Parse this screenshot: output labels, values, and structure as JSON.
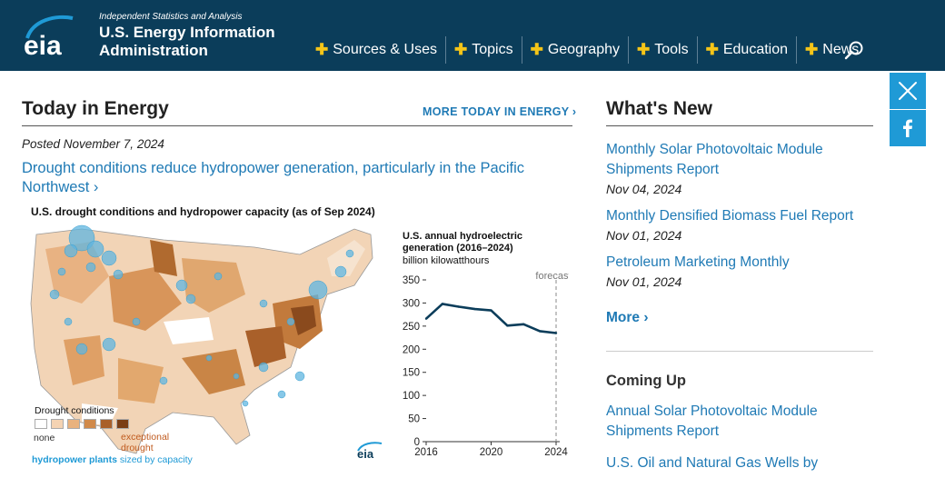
{
  "header": {
    "logo_text": "eia",
    "tagline": "Independent Statistics and Analysis",
    "org_name": "U.S. Energy Information Administration",
    "nav": [
      {
        "label": "Sources & Uses"
      },
      {
        "label": "Topics"
      },
      {
        "label": "Geography"
      },
      {
        "label": "Tools"
      },
      {
        "label": "Education"
      },
      {
        "label": "News"
      }
    ],
    "search_icon": "search-icon"
  },
  "social": {
    "twitter_icon": "x-twitter-icon",
    "facebook_icon": "facebook-icon"
  },
  "today": {
    "title": "Today in Energy",
    "more_link": "MORE TODAY IN ENERGY ›",
    "posted": "Posted November 7, 2024",
    "headline": "Drought conditions reduce hydropower generation, particularly in the Pacific Northwest ›",
    "figure": {
      "title": "U.S. drought conditions and hydropower capacity (as of Sep 2024)",
      "legend_title": "Drought conditions",
      "legend_none": "none",
      "legend_exceptional": "exceptional drought",
      "legend_hydro_bold": "hydropower plants",
      "legend_hydro_rest": " sized by capacity",
      "drought_colors": [
        "#ffffff",
        "#f4d3b3",
        "#e9b27e",
        "#d18a4a",
        "#a9602a",
        "#7a3e15"
      ],
      "logo_text": "eia"
    },
    "chart_title": "U.S. annual hydroelectric generation (2016–2024)",
    "chart_units": "billion kilowatthours"
  },
  "chart_data": {
    "type": "line",
    "title": "U.S. annual hydroelectric generation (2016–2024)",
    "ylabel": "billion kilowatthours",
    "x": [
      2016,
      2017,
      2018,
      2019,
      2020,
      2021,
      2022,
      2023,
      2024
    ],
    "values": [
      266,
      298,
      292,
      287,
      284,
      251,
      254,
      239,
      235
    ],
    "xticks": [
      2016,
      2020,
      2024
    ],
    "yticks": [
      0,
      50,
      100,
      150,
      200,
      250,
      300,
      350
    ],
    "ylim": [
      0,
      350
    ],
    "xlim": [
      2016,
      2024
    ],
    "annotation": "forecast",
    "forecast_x": 2024,
    "line_color": "#0b3d5a"
  },
  "whats_new": {
    "title": "What's New",
    "items": [
      {
        "label": "Monthly Solar Photovoltaic Module Shipments Report",
        "date": "Nov 04, 2024"
      },
      {
        "label": "Monthly Densified Biomass Fuel Report",
        "date": "Nov 01, 2024"
      },
      {
        "label": "Petroleum Marketing Monthly",
        "date": "Nov 01, 2024"
      }
    ],
    "more": "More ›"
  },
  "coming_up": {
    "title": "Coming Up",
    "items": [
      {
        "label": "Annual Solar Photovoltaic Module Shipments Report"
      },
      {
        "label": "U.S. Oil and Natural Gas Wells by"
      }
    ]
  }
}
